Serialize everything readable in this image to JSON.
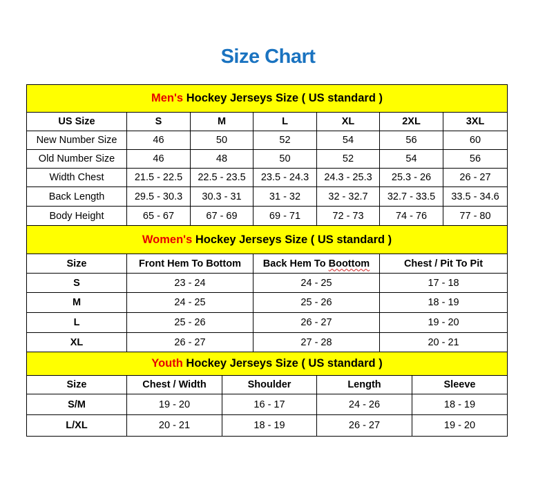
{
  "title": "Size Chart",
  "colors": {
    "title": "#1a73c0",
    "header_bg": "#ffff00",
    "accent": "#e60000"
  },
  "men": {
    "accent": "Men's",
    "heading": " Hockey Jerseys Size ( US standard )",
    "columns": [
      "US Size",
      "S",
      "M",
      "L",
      "XL",
      "2XL",
      "3XL"
    ],
    "rows": [
      [
        "New Number Size",
        "46",
        "50",
        "52",
        "54",
        "56",
        "60"
      ],
      [
        "Old Number Size",
        "46",
        "48",
        "50",
        "52",
        "54",
        "56"
      ],
      [
        "Width Chest",
        "21.5 - 22.5",
        "22.5 - 23.5",
        "23.5 - 24.3",
        "24.3 - 25.3",
        "25.3 - 26",
        "26 - 27"
      ],
      [
        "Back Length",
        "29.5 - 30.3",
        "30.3 - 31",
        "31 - 32",
        "32 - 32.7",
        "32.7 - 33.5",
        "33.5 - 34.6"
      ],
      [
        "Body Height",
        "65 - 67",
        "67 - 69",
        "69 - 71",
        "72 - 73",
        "74 - 76",
        "77 - 80"
      ]
    ]
  },
  "women": {
    "accent": "Women's",
    "heading": " Hockey Jerseys Size ( US standard )",
    "columns": [
      "Size",
      "Front Hem To Bottom",
      "Back Hem To Boottom",
      "Chest / Pit To Pit"
    ],
    "rows": [
      [
        "S",
        "23 - 24",
        "24 - 25",
        "17 - 18"
      ],
      [
        "M",
        "24 - 25",
        "25 - 26",
        "18 - 19"
      ],
      [
        "L",
        "25 - 26",
        "26 - 27",
        "19 - 20"
      ],
      [
        "XL",
        "26 - 27",
        "27 - 28",
        "20 - 21"
      ]
    ]
  },
  "youth": {
    "accent": "Youth",
    "heading": " Hockey Jerseys Size ( US standard )",
    "columns": [
      "Size",
      "Chest / Width",
      "Shoulder",
      "Length",
      "Sleeve"
    ],
    "rows": [
      [
        "S/M",
        "19 - 20",
        "16 - 17",
        "24 - 26",
        "18 - 19"
      ],
      [
        "L/XL",
        "20 - 21",
        "18 - 19",
        "26 - 27",
        "19 - 20"
      ]
    ]
  }
}
